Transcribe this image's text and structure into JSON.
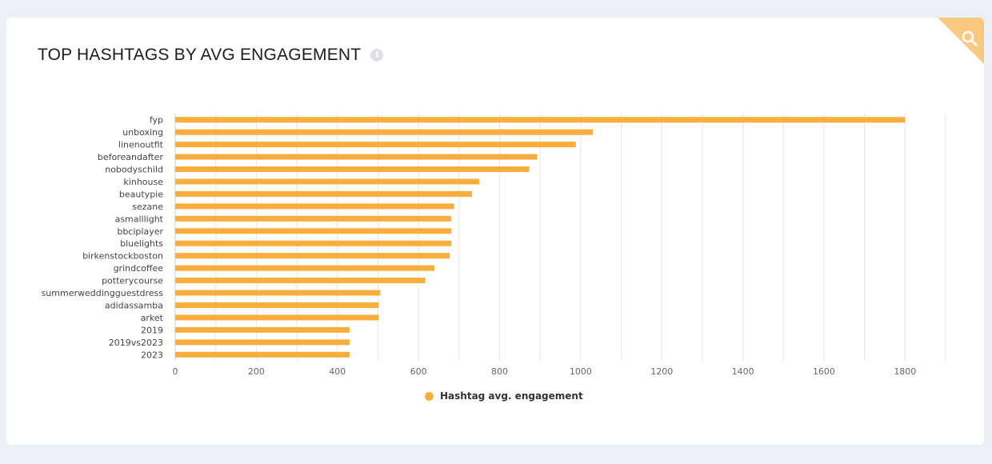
{
  "card": {
    "title": "TOP HASHTAGS BY AVG ENGAGEMENT",
    "info_icon": "info-icon",
    "corner_icon": "search-icon"
  },
  "colors": {
    "bar": "#f9ad3c",
    "corner": "#f9c97f",
    "grid": "#e4e4e4"
  },
  "chart_data": {
    "type": "bar",
    "orientation": "horizontal",
    "title": "TOP HASHTAGS BY AVG ENGAGEMENT",
    "xlabel": "",
    "ylabel": "",
    "xlim": [
      0,
      1900
    ],
    "x_ticks": [
      0,
      200,
      400,
      600,
      800,
      1000,
      1200,
      1400,
      1600,
      1800
    ],
    "grid": true,
    "legend_position": "bottom",
    "categories": [
      "fyp",
      "unboxing",
      "linenoutfit",
      "beforeandafter",
      "nobodyschild",
      "kinhouse",
      "beautypie",
      "sezane",
      "asmalllight",
      "bbciplayer",
      "bluelights",
      "birkenstockboston",
      "grindcoffee",
      "potterycourse",
      "summerweddingguestdress",
      "adidassamba",
      "arket",
      "2019",
      "2019vs2023",
      "2023"
    ],
    "series": [
      {
        "name": "Hashtag avg. engagement",
        "values": [
          1800,
          1030,
          988,
          893,
          873,
          750,
          732,
          688,
          681,
          681,
          681,
          677,
          639,
          617,
          506,
          502,
          502,
          430,
          430,
          430
        ]
      }
    ]
  }
}
